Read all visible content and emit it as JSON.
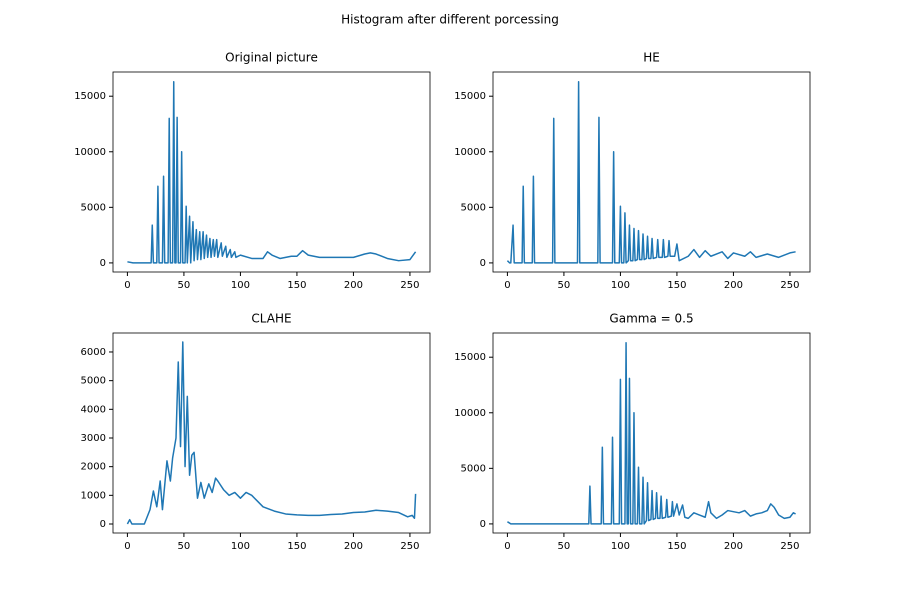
{
  "title": "Histogram after different porcessing",
  "chart_data": [
    {
      "type": "line",
      "title": "Original picture",
      "color": "#1f77b4",
      "xlim": [
        -12.75,
        267.75
      ],
      "xticks": [
        0,
        50,
        100,
        150,
        200,
        250
      ],
      "ylim": [
        -818,
        17178
      ],
      "yticks": [
        0,
        5000,
        10000,
        15000
      ],
      "x": [
        0,
        5,
        20,
        21,
        22,
        23,
        26,
        27,
        28,
        31,
        32,
        33,
        36,
        37,
        38,
        40,
        41,
        42,
        43,
        44,
        45,
        47,
        48,
        49,
        51,
        52,
        53,
        55,
        56,
        58,
        59,
        61,
        62,
        64,
        65,
        67,
        68,
        70,
        71,
        73,
        74,
        76,
        77,
        79,
        80,
        83,
        84,
        87,
        88,
        91,
        92,
        95,
        96,
        100,
        110,
        120,
        124,
        128,
        135,
        145,
        150,
        155,
        160,
        170,
        180,
        190,
        200,
        210,
        215,
        220,
        230,
        240,
        250,
        255
      ],
      "values": [
        100,
        0,
        0,
        0,
        3400,
        0,
        0,
        6900,
        0,
        0,
        7800,
        0,
        0,
        13000,
        0,
        0,
        16300,
        0,
        0,
        13100,
        0,
        0,
        10000,
        0,
        0,
        5100,
        0,
        4200,
        0,
        3700,
        200,
        3000,
        300,
        2800,
        300,
        2800,
        400,
        2500,
        500,
        2200,
        500,
        2100,
        600,
        2100,
        500,
        1800,
        600,
        1500,
        500,
        1200,
        500,
        1000,
        500,
        700,
        400,
        400,
        1000,
        700,
        400,
        600,
        600,
        1100,
        700,
        500,
        500,
        500,
        500,
        800,
        900,
        800,
        400,
        200,
        300,
        1000
      ]
    },
    {
      "type": "line",
      "title": "HE",
      "color": "#1f77b4",
      "xlim": [
        -12.75,
        267.75
      ],
      "xticks": [
        0,
        50,
        100,
        150,
        200,
        250
      ],
      "ylim": [
        -818,
        17178
      ],
      "yticks": [
        0,
        5000,
        10000,
        15000
      ],
      "x": [
        0,
        2,
        3,
        5,
        6,
        13,
        14,
        15,
        22,
        23,
        24,
        40,
        41,
        42,
        62,
        63,
        64,
        80,
        81,
        82,
        93,
        94,
        95,
        99,
        100,
        101,
        103,
        104,
        105,
        107,
        108,
        109,
        111,
        112,
        113,
        115,
        116,
        117,
        119,
        120,
        121,
        123,
        124,
        125,
        127,
        128,
        129,
        132,
        133,
        134,
        137,
        138,
        139,
        142,
        143,
        144,
        148,
        150,
        152,
        160,
        165,
        170,
        175,
        180,
        190,
        195,
        200,
        210,
        215,
        220,
        230,
        240,
        250,
        255
      ],
      "values": [
        200,
        0,
        0,
        3400,
        0,
        0,
        6900,
        0,
        0,
        7800,
        0,
        0,
        13000,
        0,
        0,
        16300,
        0,
        0,
        13100,
        0,
        0,
        10000,
        0,
        0,
        5100,
        0,
        0,
        4500,
        0,
        200,
        3400,
        200,
        200,
        3100,
        200,
        300,
        2900,
        300,
        300,
        2600,
        300,
        400,
        2400,
        400,
        400,
        2200,
        400,
        500,
        2100,
        500,
        500,
        2100,
        500,
        600,
        2000,
        600,
        600,
        1700,
        200,
        600,
        1200,
        500,
        1100,
        600,
        1000,
        400,
        900,
        600,
        1000,
        500,
        800,
        500,
        900,
        1000
      ]
    },
    {
      "type": "line",
      "title": "CLAHE",
      "color": "#1f77b4",
      "xlim": [
        -12.75,
        267.75
      ],
      "xticks": [
        0,
        50,
        100,
        150,
        200,
        250
      ],
      "ylim": [
        -314,
        6662
      ],
      "yticks": [
        0,
        1000,
        2000,
        3000,
        4000,
        5000,
        6000
      ],
      "x": [
        0,
        2,
        4,
        15,
        20,
        23,
        26,
        29,
        31,
        35,
        38,
        40,
        43,
        45,
        47,
        49,
        51,
        53,
        55,
        57,
        59,
        62,
        65,
        68,
        72,
        75,
        78,
        80,
        85,
        90,
        95,
        100,
        105,
        110,
        115,
        120,
        130,
        140,
        150,
        160,
        170,
        180,
        190,
        200,
        210,
        220,
        230,
        240,
        248,
        252,
        254,
        255
      ],
      "values": [
        0,
        150,
        0,
        0,
        500,
        1150,
        600,
        1500,
        500,
        2200,
        1500,
        2300,
        3000,
        5650,
        2700,
        6350,
        2000,
        4450,
        1700,
        2400,
        2500,
        900,
        1450,
        900,
        1400,
        1100,
        1600,
        1500,
        1200,
        1000,
        1100,
        900,
        1100,
        1000,
        800,
        600,
        450,
        350,
        320,
        300,
        300,
        330,
        350,
        400,
        420,
        480,
        450,
        400,
        250,
        300,
        200,
        1050
      ]
    },
    {
      "type": "line",
      "title": "Gamma = 0.5",
      "color": "#1f77b4",
      "xlim": [
        -12.75,
        267.75
      ],
      "xticks": [
        0,
        50,
        100,
        150,
        200,
        250
      ],
      "ylim": [
        -818,
        17178
      ],
      "yticks": [
        0,
        5000,
        10000,
        15000
      ],
      "x": [
        0,
        3,
        72,
        73,
        74,
        83,
        84,
        85,
        92,
        93,
        94,
        99,
        100,
        101,
        104,
        105,
        106,
        107,
        108,
        109,
        111,
        112,
        113,
        115,
        116,
        117,
        119,
        120,
        121,
        123,
        124,
        125,
        127,
        128,
        129,
        131,
        132,
        133,
        135,
        136,
        137,
        140,
        141,
        142,
        145,
        146,
        147,
        150,
        152,
        155,
        157,
        160,
        165,
        170,
        175,
        178,
        180,
        185,
        190,
        195,
        200,
        205,
        210,
        215,
        220,
        225,
        230,
        233,
        236,
        240,
        245,
        250,
        253,
        255
      ],
      "values": [
        200,
        0,
        0,
        3400,
        0,
        0,
        6900,
        0,
        0,
        7800,
        0,
        0,
        13000,
        0,
        0,
        16300,
        0,
        0,
        13100,
        0,
        0,
        10000,
        0,
        0,
        5100,
        0,
        0,
        4200,
        0,
        300,
        3700,
        300,
        400,
        3000,
        400,
        500,
        2800,
        500,
        500,
        2500,
        500,
        600,
        2200,
        600,
        700,
        2000,
        700,
        1800,
        800,
        1700,
        600,
        500,
        1000,
        800,
        600,
        2000,
        1000,
        500,
        800,
        1200,
        1100,
        1000,
        1200,
        700,
        900,
        1000,
        1200,
        1800,
        1500,
        800,
        500,
        600,
        1000,
        900
      ]
    }
  ]
}
